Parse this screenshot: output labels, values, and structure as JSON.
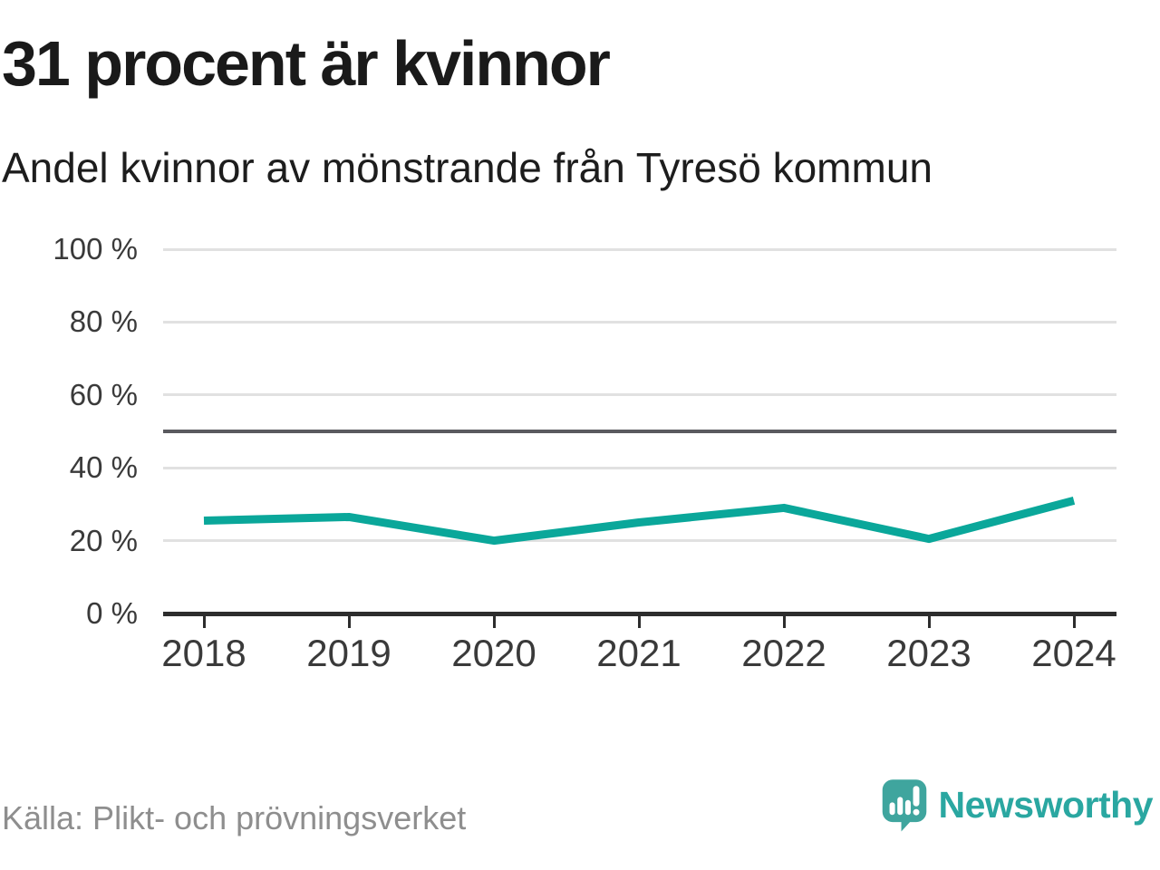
{
  "header": {
    "title": "31 procent är kvinnor",
    "subtitle": "Andel kvinnor av mönstrande från Tyresö kommun"
  },
  "footer": {
    "source": "Källa: Plikt- och prövningsverket",
    "brand": "Newsworthy"
  },
  "colors": {
    "line": "#0aa79a",
    "reference_line": "#5a5a5f",
    "gridline": "#e1e1e1",
    "axis": "#2d2d2d",
    "title_text": "#1a1a1a",
    "label_text": "#3a3a3a",
    "source_text": "#8e8e8e",
    "logo_bubble": "#3fa59e",
    "brand_text": "#2aa7a1"
  },
  "chart_data": {
    "type": "line",
    "title": "31 procent är kvinnor",
    "subtitle": "Andel kvinnor av mönstrande från Tyresö kommun",
    "x": [
      "2018",
      "2019",
      "2020",
      "2021",
      "2022",
      "2023",
      "2024"
    ],
    "series": [
      {
        "name": "Andel kvinnor av mönstrande",
        "values": [
          25.5,
          26.5,
          20,
          25,
          29,
          20.5,
          31
        ]
      }
    ],
    "xlabel": "",
    "ylabel": "",
    "ylim": [
      0,
      100
    ],
    "yticks": [
      {
        "value": 100,
        "label": "100 %"
      },
      {
        "value": 80,
        "label": "80 %"
      },
      {
        "value": 60,
        "label": "60 %"
      },
      {
        "value": 40,
        "label": "40 %"
      },
      {
        "value": 20,
        "label": "20 %"
      },
      {
        "value": 0,
        "label": "0 %"
      }
    ],
    "reference_line": 50,
    "grid": true,
    "legend": false
  }
}
